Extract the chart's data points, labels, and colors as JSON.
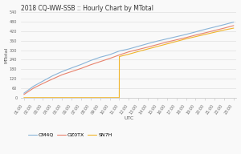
{
  "title": "2018 CQ-WW-SSB :: Hourly Chart by MTotal",
  "xlabel": "UTC",
  "ylabel": "MTotal",
  "ylim": [
    0,
    540
  ],
  "yticks": [
    0,
    60,
    120,
    180,
    240,
    300,
    360,
    420,
    480,
    540
  ],
  "x_labels": [
    "01:00",
    "02:00",
    "03:00",
    "04:00",
    "05:00",
    "06:00",
    "07:00",
    "08:00",
    "09:00",
    "10:00",
    "11:00",
    "12:00",
    "13:00",
    "14:00",
    "15:00",
    "16:00",
    "17:00",
    "18:00",
    "19:00",
    "20:00",
    "21:00",
    "22:00",
    "23:00"
  ],
  "series": {
    "OM4Q": {
      "color": "#8ab4d8",
      "x": [
        0,
        1,
        2,
        3,
        4,
        5,
        6,
        7,
        8,
        9,
        10,
        11,
        12,
        13,
        14,
        15,
        16,
        17,
        18,
        19,
        20,
        21,
        22
      ],
      "y": [
        28,
        72,
        105,
        138,
        165,
        188,
        210,
        235,
        256,
        272,
        295,
        308,
        325,
        342,
        358,
        372,
        386,
        400,
        416,
        432,
        447,
        462,
        478
      ]
    },
    "OZ0TX": {
      "color": "#e8836e",
      "x": [
        0,
        1,
        2,
        3,
        4,
        5,
        6,
        7,
        8,
        9,
        10,
        11,
        12,
        13,
        14,
        15,
        16,
        17,
        18,
        19,
        20,
        21,
        22
      ],
      "y": [
        20,
        60,
        90,
        118,
        145,
        165,
        185,
        208,
        228,
        248,
        270,
        290,
        305,
        320,
        336,
        352,
        366,
        380,
        396,
        410,
        425,
        440,
        456
      ]
    },
    "SN7H": {
      "color": "#f0b429",
      "x": [
        0,
        1,
        2,
        3,
        4,
        5,
        6,
        7,
        8,
        9,
        10,
        10.01,
        11,
        12,
        13,
        14,
        15,
        16,
        17,
        18,
        19,
        20,
        21,
        22
      ],
      "y": [
        0,
        0,
        0,
        0,
        0,
        0,
        0,
        0,
        0,
        0,
        0,
        260,
        275,
        292,
        308,
        324,
        340,
        356,
        372,
        386,
        400,
        414,
        428,
        440
      ]
    }
  },
  "background_color": "#f9f9f9",
  "grid_color": "#e0e0e0",
  "title_fontsize": 5.5,
  "axis_label_fontsize": 4.5,
  "tick_fontsize": 3.5,
  "legend_fontsize": 4.5,
  "linewidth": 0.8
}
